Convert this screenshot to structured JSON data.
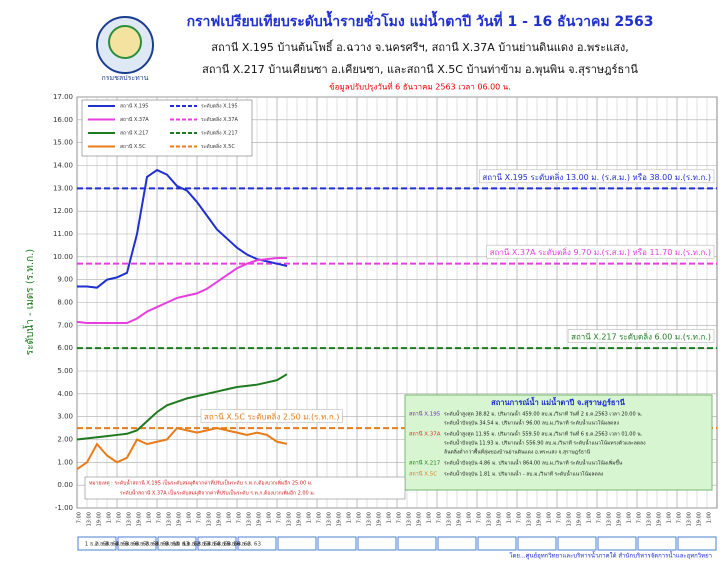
{
  "chart_data": {
    "type": "line",
    "title": "กราฟเปรียบเทียบระดับน้ำรายชั่วโมง  แม่น้ำตาปี วันที่ 1 - 16 ธันวาคม 2563",
    "subtitle_lines": [
      "สถานี X.195 บ้านต้นโพธิ์ อ.ฉวาง จ.นครศรีฯ, สถานี X.37A บ้านย่านดินแดง อ.พระแสง,",
      "สถานี X.217 บ้านเคียนซา อ.เคียนซา, และสถานี X.5C บ้านท่าข้าม อ.พุนพิน จ.สุราษฎร์ธานี"
    ],
    "update_note": "ข้อมูลปรับปรุงวันที่ 6 ธันวาคม 2563 เวลา 06.00 น.",
    "logo_text": "กรมชลประทาน",
    "y_label": "ระดับน้ำ - เมตร (ร.ท.ก.)",
    "ylim": [
      -1,
      17
    ],
    "yticks": [
      {
        "value": 17,
        "label": "17.00"
      },
      {
        "value": 16,
        "label": "16.00"
      },
      {
        "value": 15,
        "label": "15.00"
      },
      {
        "value": 14,
        "label": "14.00"
      },
      {
        "value": 13,
        "label": "13.00"
      },
      {
        "value": 12,
        "label": "12.00"
      },
      {
        "value": 11,
        "label": "11.00"
      },
      {
        "value": 10,
        "label": "10.00"
      },
      {
        "value": 9,
        "label": "9.00"
      },
      {
        "value": 8,
        "label": "8.00"
      },
      {
        "value": 7,
        "label": "7.00"
      },
      {
        "value": 6,
        "label": "6.00"
      },
      {
        "value": 5,
        "label": "5.00"
      },
      {
        "value": 4,
        "label": "4.00"
      },
      {
        "value": 3,
        "label": "3.00"
      },
      {
        "value": 2,
        "label": "2.00"
      },
      {
        "value": 1,
        "label": "1.00"
      },
      {
        "value": 0,
        "label": "0.00"
      },
      {
        "value": -1,
        "label": "-1.00"
      }
    ],
    "grid": true,
    "categories": [
      "7:00",
      "13:00",
      "19:00",
      "1:00",
      "7:00",
      "13:00",
      "19:00",
      "1:00",
      "7:00",
      "13:00",
      "19:00",
      "1:00",
      "7:00",
      "13:00",
      "19:00",
      "1:00",
      "7:00",
      "13:00",
      "19:00",
      "1:00",
      "7:00",
      "13:00",
      "19:00",
      "1:00",
      "7:00",
      "13:00",
      "19:00",
      "1:00",
      "7:00",
      "13:00",
      "19:00",
      "1:00",
      "7:00",
      "13:00",
      "19:00",
      "1:00",
      "7:00",
      "13:00",
      "19:00",
      "1:00",
      "7:00",
      "13:00",
      "19:00",
      "1:00",
      "7:00",
      "13:00",
      "19:00",
      "1:00",
      "7:00",
      "13:00",
      "19:00",
      "1:00",
      "7:00",
      "13:00",
      "19:00",
      "1:00",
      "7:00",
      "13:00",
      "19:00",
      "1:00",
      "7:00",
      "13:00",
      "19:00",
      "1:00"
    ],
    "day_labels": [
      "1 ธ.ค. 63",
      "2 ธ.ค. 63",
      "3 ธ.ค. 63",
      "4 ธ.ค. 63",
      "5 ธ.ค. 63",
      "6 ธ.ค. 63",
      "7 ธ.ค. 63",
      "8 ธ.ค. 63",
      "9 ธ.ค. 63",
      "10 ธ.ค. 63",
      "11 ธ.ค. 63",
      "12 ธ.ค. 63",
      "13 ธ.ค. 63",
      "14 ธ.ค. 63",
      "15 ธ.ค. 63",
      "16 ธ.ค. 63"
    ],
    "series": [
      {
        "name": "สถานี X.195",
        "color": "#1f2fd0",
        "values": [
          8.7,
          8.7,
          8.65,
          9.0,
          9.1,
          9.3,
          11.0,
          13.5,
          13.8,
          13.6,
          13.1,
          12.9,
          12.4,
          11.8,
          11.2,
          10.8,
          10.4,
          10.1,
          9.9,
          9.8,
          9.7,
          9.6,
          null,
          null,
          null,
          null,
          null,
          null,
          null,
          null,
          null,
          null,
          null,
          null,
          null,
          null,
          null,
          null,
          null,
          null,
          null,
          null,
          null,
          null,
          null,
          null,
          null,
          null,
          null,
          null,
          null,
          null,
          null,
          null,
          null,
          null,
          null,
          null,
          null,
          null,
          null,
          null,
          null,
          null
        ]
      },
      {
        "name": "สถานี X.37A",
        "color": "#e83ee0",
        "values": [
          7.15,
          7.1,
          7.1,
          7.1,
          7.1,
          7.1,
          7.3,
          7.6,
          7.8,
          8.0,
          8.2,
          8.3,
          8.4,
          8.6,
          8.9,
          9.2,
          9.5,
          9.7,
          9.85,
          9.9,
          9.95,
          9.95,
          null,
          null,
          null,
          null,
          null,
          null,
          null,
          null,
          null,
          null,
          null,
          null,
          null,
          null,
          null,
          null,
          null,
          null,
          null,
          null,
          null,
          null,
          null,
          null,
          null,
          null,
          null,
          null,
          null,
          null,
          null,
          null,
          null,
          null,
          null,
          null,
          null,
          null,
          null,
          null,
          null,
          null
        ]
      },
      {
        "name": "สถานี X.217",
        "color": "#1f7a1f",
        "values": [
          2.0,
          2.05,
          2.1,
          2.15,
          2.2,
          2.25,
          2.4,
          2.8,
          3.2,
          3.5,
          3.65,
          3.8,
          3.9,
          4.0,
          4.1,
          4.2,
          4.3,
          4.35,
          4.4,
          4.5,
          4.6,
          4.86,
          null,
          null,
          null,
          null,
          null,
          null,
          null,
          null,
          null,
          null,
          null,
          null,
          null,
          null,
          null,
          null,
          null,
          null,
          null,
          null,
          null,
          null,
          null,
          null,
          null,
          null,
          null,
          null,
          null,
          null,
          null,
          null,
          null,
          null,
          null,
          null,
          null,
          null,
          null,
          null,
          null,
          null
        ]
      },
      {
        "name": "สถานี X.5C",
        "color": "#e87b1a",
        "values": [
          0.7,
          1.0,
          1.8,
          1.3,
          1.0,
          1.2,
          2.0,
          1.8,
          1.9,
          2.0,
          2.5,
          2.4,
          2.3,
          2.4,
          2.5,
          2.4,
          2.3,
          2.2,
          2.3,
          2.2,
          1.9,
          1.81,
          null,
          null,
          null,
          null,
          null,
          null,
          null,
          null,
          null,
          null,
          null,
          null,
          null,
          null,
          null,
          null,
          null,
          null,
          null,
          null,
          null,
          null,
          null,
          null,
          null,
          null,
          null,
          null,
          null,
          null,
          null,
          null,
          null,
          null,
          null,
          null,
          null,
          null,
          null,
          null,
          null,
          null
        ]
      }
    ],
    "bank_levels": [
      {
        "name": "ระดับตลิ่ง X.195",
        "color": "#1f2fd0",
        "value": 13,
        "label": "สถานี X.195 ระดับตลิ่ง 13.00 ม. (ร.ส.ม.) หรือ 38.00 ม.(ร.ท.ก.)"
      },
      {
        "name": "ระดับตลิ่ง X.37A",
        "color": "#e83ee0",
        "value": 9.7,
        "label": "สถานี X.37A ระดับตลิ่ง 9.70 ม.(ร.ส.ม.) หรือ 11.70 ม.(ร.ท.ก.)"
      },
      {
        "name": "ระดับตลิ่ง X.217",
        "color": "#1f7a1f",
        "value": 6,
        "label": "สถานี X.217 ระดับตลิ่ง 6.00 ม.(ร.ท.ก.)"
      },
      {
        "name": "ระดับตลิ่ง X.5C",
        "color": "#e87b1a",
        "value": 2.5,
        "label": "สถานี X.5C ระดับตลิ่ง 2.50 ม.(ร.ท.ก.)"
      }
    ],
    "info_box": {
      "title": "สถานการณ์น้ำ แม่น้ำตาปี จ.สุราษฎร์ธานี",
      "rows": [
        {
          "station": "สถานี X.195",
          "lines": [
            "ระดับน้ำสูงสุด 38.82 ม. ปริมาณน้ำ 459.00 ลบ.ม./วินาที วันที่ 2 ธ.ค.2563 เวลา 20.00 น.",
            "ระดับน้ำปัจจุบัน 34.54 ม. ปริมาณน้ำ 96.00 ลบ.ม./วินาที ระดับน้ำแนวโน้มลดลง"
          ]
        },
        {
          "station": "สถานี X.37A",
          "lines": [
            "ระดับน้ำสูงสุด 11.95 ม. ปริมาณน้ำ 559.50 ลบ.ม./วินาที วันที่ 6 ธ.ค.2563 เวลา 01.00 น.",
            "ระดับน้ำปัจจุบัน 11.93 ม. ปริมาณน้ำ 556.90 ลบ.ม./วินาที ระดับน้ำแนวโน้มทรงตัวและลดลง",
            "ล้นตลิ่งต่ำกว่าพื้นที่ลุ่มของบ้านย่านดินแดง อ.พระแสง จ.สุราษฎร์ธานี"
          ]
        },
        {
          "station": "สถานี X.217",
          "lines": [
            "ระดับน้ำปัจจุบัน 4.86 ม. ปริมาณน้ำ 864.00 ลบ.ม./วินาที ระดับน้ำแนวโน้มเพิ่มขึ้น"
          ]
        },
        {
          "station": "สถานี X.5C",
          "lines": [
            "ระดับน้ำปัจจุบัน 1.81 ม. ปริมาณน้ำ - ลบ.ม./วินาที ระดับน้ำแนวโน้มลดลง"
          ]
        }
      ]
    },
    "note_lines": [
      "หมายเหตุ : ระดับน้ำสถานี X.195 เป็นระดับสมมุติจากค่าที่ปรับเป็นระดับ ร.ท.ก.ต้องบวกเพิ่มอีก 25.00 ม.",
      "ระดับน้ำสถานี X.37A เป็นระดับสมมุติจากค่าที่ปรับเป็นระดับ ร.ท.ก.ต้องบวกเพิ่มอีก 2.00 ม."
    ],
    "footer": "โดย...ศูนย์อุทกวิทยาและบริหารน้ำภาคใต้  สำนักบริหารจัดการน้ำและอุทกวิทยา"
  }
}
